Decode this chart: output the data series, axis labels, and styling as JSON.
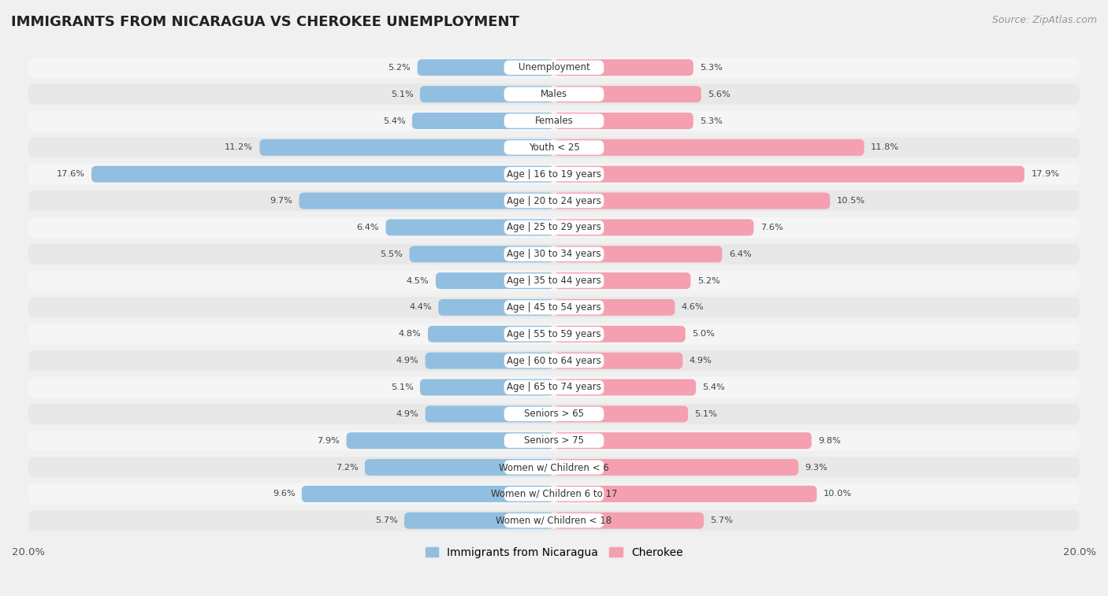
{
  "title": "IMMIGRANTS FROM NICARAGUA VS CHEROKEE UNEMPLOYMENT",
  "source": "Source: ZipAtlas.com",
  "categories": [
    "Unemployment",
    "Males",
    "Females",
    "Youth < 25",
    "Age | 16 to 19 years",
    "Age | 20 to 24 years",
    "Age | 25 to 29 years",
    "Age | 30 to 34 years",
    "Age | 35 to 44 years",
    "Age | 45 to 54 years",
    "Age | 55 to 59 years",
    "Age | 60 to 64 years",
    "Age | 65 to 74 years",
    "Seniors > 65",
    "Seniors > 75",
    "Women w/ Children < 6",
    "Women w/ Children 6 to 17",
    "Women w/ Children < 18"
  ],
  "nicaragua_values": [
    5.2,
    5.1,
    5.4,
    11.2,
    17.6,
    9.7,
    6.4,
    5.5,
    4.5,
    4.4,
    4.8,
    4.9,
    5.1,
    4.9,
    7.9,
    7.2,
    9.6,
    5.7
  ],
  "cherokee_values": [
    5.3,
    5.6,
    5.3,
    11.8,
    17.9,
    10.5,
    7.6,
    6.4,
    5.2,
    4.6,
    5.0,
    4.9,
    5.4,
    5.1,
    9.8,
    9.3,
    10.0,
    5.7
  ],
  "nicaragua_color": "#92bfe0",
  "cherokee_color": "#f4a0b0",
  "nicaragua_color_dark": "#6baed6",
  "cherokee_color_dark": "#f08090",
  "row_color_odd": "#f5f5f5",
  "row_color_even": "#e8e8e8",
  "background_color": "#f0f0f0",
  "label_bg_color": "#ffffff",
  "max_value": 20.0,
  "legend_nicaragua": "Immigrants from Nicaragua",
  "legend_cherokee": "Cherokee",
  "title_fontsize": 13,
  "source_fontsize": 9,
  "label_fontsize": 8.5,
  "value_fontsize": 8.2
}
